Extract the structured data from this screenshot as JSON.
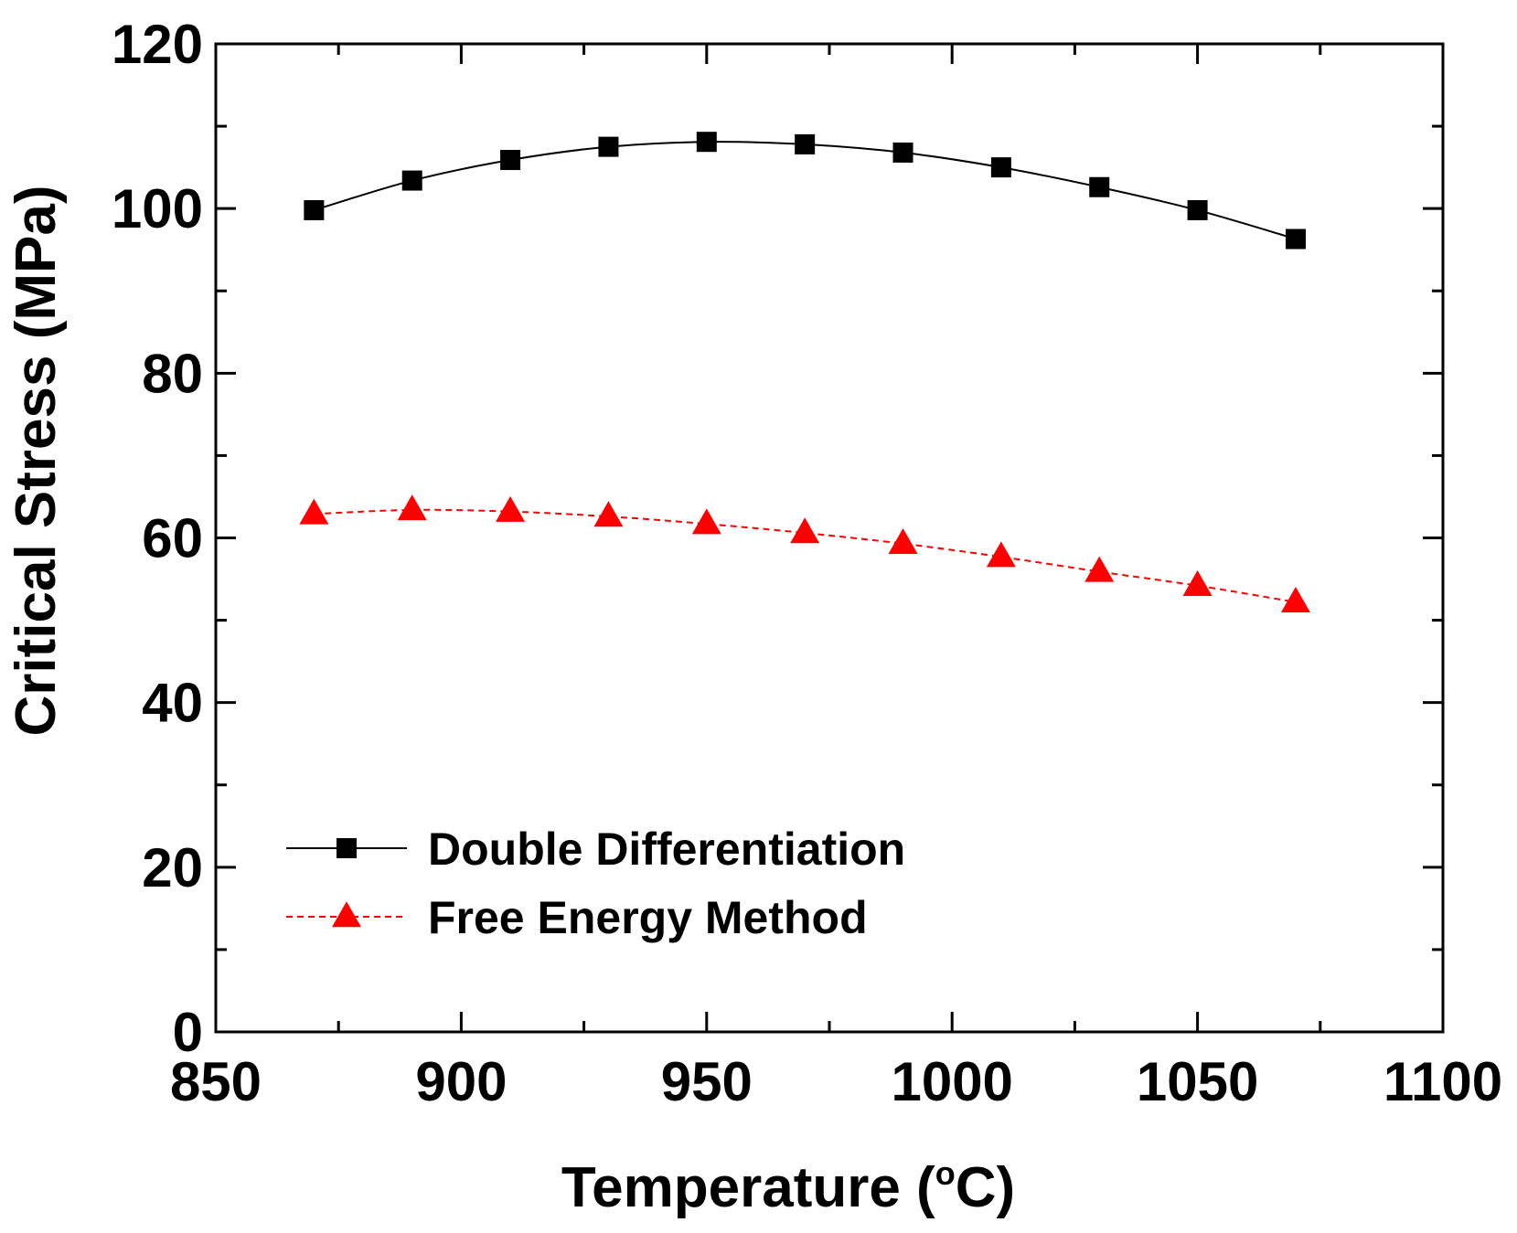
{
  "chart_data": {
    "type": "line",
    "title": "",
    "xlabel": "Temperature (",
    "xlabel_degree": "o",
    "xlabel_unit": "C)",
    "ylabel": "Critical Stress (MPa)",
    "xlim": [
      850,
      1100
    ],
    "ylim": [
      0,
      120
    ],
    "x_major_ticks": [
      850,
      900,
      950,
      1000,
      1050,
      1100
    ],
    "x_minor_ticks": [
      875,
      925,
      975,
      1025,
      1075
    ],
    "y_major_ticks": [
      0,
      20,
      40,
      60,
      80,
      100,
      120
    ],
    "y_minor_ticks": [
      10,
      30,
      50,
      70,
      90,
      110
    ],
    "x_tick_labels": [
      "850",
      "900",
      "950",
      "1000",
      "1050",
      "1100"
    ],
    "y_tick_labels": [
      "0",
      "20",
      "40",
      "60",
      "80",
      "100",
      "120"
    ],
    "grid": false,
    "legend_position": "lower-left",
    "x": [
      870,
      890,
      910,
      930,
      950,
      970,
      990,
      1010,
      1030,
      1050,
      1070
    ],
    "series": [
      {
        "name": "Double Differentiation",
        "values": [
          99.8,
          103.4,
          105.9,
          107.5,
          108.1,
          107.8,
          106.8,
          105.0,
          102.6,
          99.8,
          96.3
        ],
        "color": "#000000",
        "marker": "square",
        "line": "solid"
      },
      {
        "name": "Free Energy Method",
        "values": [
          62.9,
          63.4,
          63.2,
          62.6,
          61.7,
          60.6,
          59.3,
          57.7,
          55.9,
          54.2,
          52.2
        ],
        "color": "#ff0000",
        "marker": "triangle",
        "line": "dashed"
      }
    ]
  }
}
